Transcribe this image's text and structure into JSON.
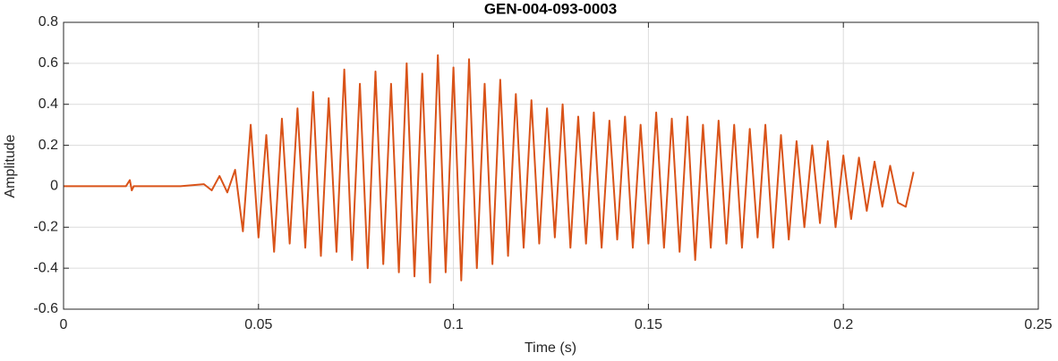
{
  "chart_data": {
    "type": "line",
    "title": "GEN-004-093-0003",
    "xlabel": "Time (s)",
    "ylabel": "Amplitude",
    "x": [
      0,
      0.016,
      0.017,
      0.0175,
      0.018,
      0.03,
      0.036,
      0.038,
      0.04,
      0.042,
      0.044,
      0.046,
      0.048,
      0.05,
      0.052,
      0.054,
      0.056,
      0.058,
      0.06,
      0.062,
      0.064,
      0.066,
      0.068,
      0.07,
      0.072,
      0.074,
      0.076,
      0.078,
      0.08,
      0.082,
      0.084,
      0.086,
      0.088,
      0.09,
      0.092,
      0.094,
      0.096,
      0.098,
      0.1,
      0.102,
      0.104,
      0.106,
      0.108,
      0.11,
      0.112,
      0.114,
      0.116,
      0.118,
      0.12,
      0.122,
      0.124,
      0.126,
      0.128,
      0.13,
      0.132,
      0.134,
      0.136,
      0.138,
      0.14,
      0.142,
      0.144,
      0.146,
      0.148,
      0.15,
      0.152,
      0.154,
      0.156,
      0.158,
      0.16,
      0.162,
      0.164,
      0.166,
      0.168,
      0.17,
      0.172,
      0.174,
      0.176,
      0.178,
      0.18,
      0.182,
      0.184,
      0.186,
      0.188,
      0.19,
      0.192,
      0.194,
      0.196,
      0.198,
      0.2,
      0.202,
      0.204,
      0.206,
      0.208,
      0.21,
      0.212,
      0.214,
      0.216,
      0.218
    ],
    "series": [
      {
        "color": "#d95319",
        "values": [
          0,
          0,
          0.03,
          -0.02,
          0,
          0,
          0.01,
          -0.02,
          0.05,
          -0.03,
          0.08,
          -0.22,
          0.3,
          -0.25,
          0.25,
          -0.32,
          0.33,
          -0.28,
          0.38,
          -0.3,
          0.46,
          -0.34,
          0.43,
          -0.32,
          0.57,
          -0.36,
          0.5,
          -0.4,
          0.56,
          -0.38,
          0.5,
          -0.42,
          0.6,
          -0.44,
          0.55,
          -0.47,
          0.64,
          -0.42,
          0.58,
          -0.46,
          0.62,
          -0.4,
          0.5,
          -0.38,
          0.52,
          -0.34,
          0.45,
          -0.3,
          0.42,
          -0.28,
          0.38,
          -0.25,
          0.4,
          -0.3,
          0.34,
          -0.28,
          0.36,
          -0.3,
          0.32,
          -0.26,
          0.34,
          -0.3,
          0.3,
          -0.28,
          0.36,
          -0.3,
          0.33,
          -0.32,
          0.34,
          -0.36,
          0.3,
          -0.3,
          0.32,
          -0.28,
          0.3,
          -0.3,
          0.28,
          -0.25,
          0.3,
          -0.3,
          0.25,
          -0.26,
          0.22,
          -0.2,
          0.2,
          -0.18,
          0.22,
          -0.2,
          0.15,
          -0.16,
          0.14,
          -0.12,
          0.12,
          -0.1,
          0.1,
          -0.08,
          -0.1,
          0.07
        ]
      }
    ],
    "xlim": [
      0,
      0.25
    ],
    "xticks": [
      0,
      0.05,
      0.1,
      0.15,
      0.2,
      0.25
    ],
    "ylim": [
      -0.6,
      0.8
    ],
    "yticks": [
      -0.6,
      -0.4,
      -0.2,
      0,
      0.2,
      0.4,
      0.6,
      0.8
    ],
    "grid": true
  }
}
